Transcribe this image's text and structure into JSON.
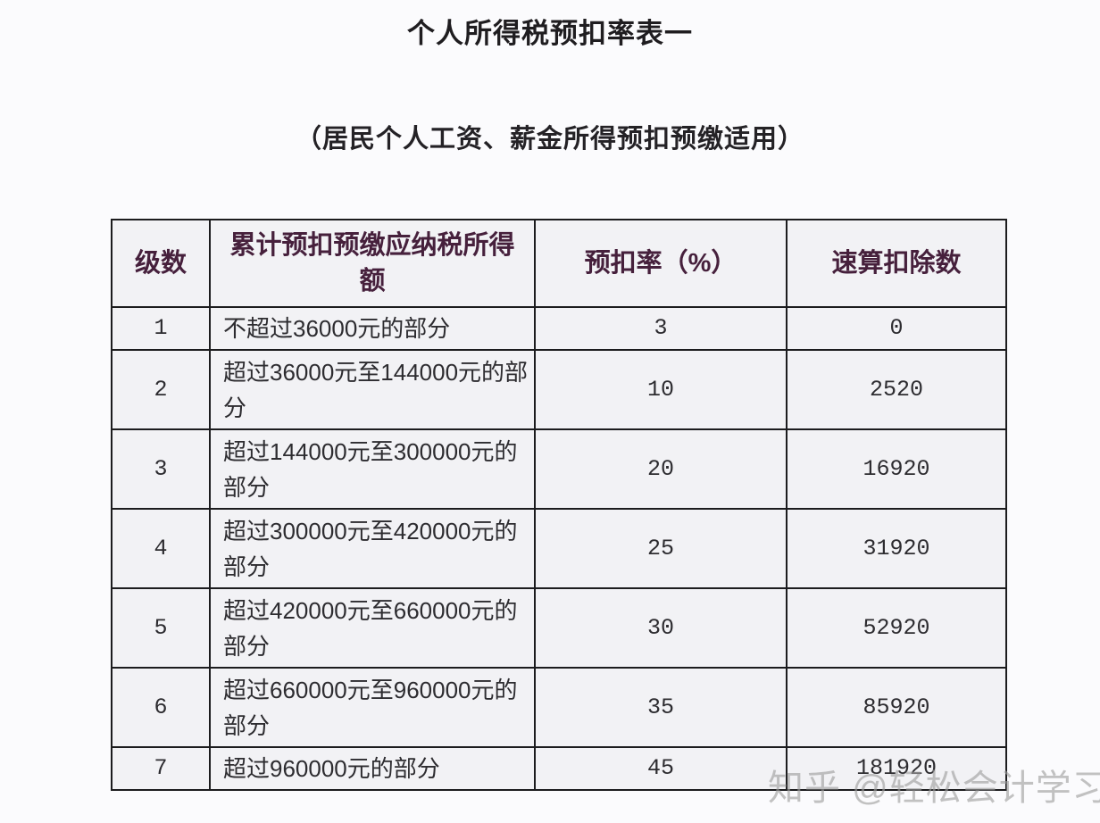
{
  "page": {
    "title": "个人所得税预扣率表一",
    "subtitle": "（居民个人工资、薪金所得预扣预缴适用）"
  },
  "table": {
    "headers": [
      "级数",
      "累计预扣预缴应纳税所得额",
      "预扣率（%）",
      "速算扣除数"
    ],
    "rows": [
      {
        "level": "1",
        "income": "不超过36000元的部分",
        "rate": "3",
        "deduction": "0"
      },
      {
        "level": "2",
        "income": "超过36000元至144000元的部分",
        "rate": "10",
        "deduction": "2520"
      },
      {
        "level": "3",
        "income": "超过144000元至300000元的部分",
        "rate": "20",
        "deduction": "16920"
      },
      {
        "level": "4",
        "income": "超过300000元至420000元的部分",
        "rate": "25",
        "deduction": "31920"
      },
      {
        "level": "5",
        "income": "超过420000元至660000元的部分",
        "rate": "30",
        "deduction": "52920"
      },
      {
        "level": "6",
        "income": "超过660000元至960000元的部分",
        "rate": "35",
        "deduction": "85920"
      },
      {
        "level": "7",
        "income": "超过960000元的部分",
        "rate": "45",
        "deduction": "181920"
      }
    ]
  },
  "watermark": {
    "text": "知乎 @轻松会计学习"
  },
  "colors": {
    "page_background": "#fbfbfd",
    "cell_background": "#f2f2f5",
    "border": "#1c1c1e",
    "header_text": "#46203c",
    "body_text": "#2d2c30",
    "title_text": "#1f1d20",
    "watermark_text": "#9e9e9e"
  }
}
